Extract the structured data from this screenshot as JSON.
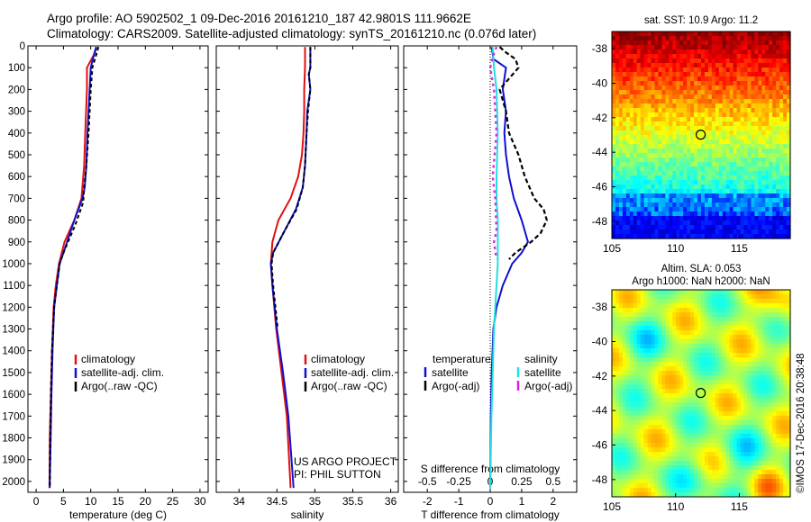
{
  "header": {
    "line1": "Argo profile: AO 5902502_1 09-Dec-2016 20161210_187 42.9801S 111.9662E",
    "line2": "Climatology: CARS2009. Satellite-adjusted climatology: synTS_20161210.nc (0.076d later)"
  },
  "colors": {
    "climatology": "#e01010",
    "satellite": "#1010d0",
    "argo": "#000000",
    "sal_satellite": "#20e0e0",
    "sal_argo": "#e020e0"
  },
  "chart_data": [
    {
      "type": "line",
      "id": "temperature",
      "xlabel": "temperature (deg C)",
      "ylabel": "",
      "xlim": [
        -1.5,
        31.5
      ],
      "ylim": [
        2050,
        0
      ],
      "x_ticks": [
        0,
        5,
        10,
        15,
        20,
        25,
        30
      ],
      "y_ticks": [
        0,
        100,
        200,
        300,
        400,
        500,
        600,
        700,
        800,
        900,
        1000,
        1100,
        1200,
        1300,
        1400,
        1500,
        1600,
        1700,
        1800,
        1900,
        2000
      ],
      "legend": {
        "placement": "lower-right",
        "entries": [
          "climatology",
          "satellite-adj. clim.",
          "Argo(..raw -QC)"
        ]
      },
      "series": [
        {
          "name": "climatology",
          "x": [
            11.0,
            10.8,
            9.3,
            9.3,
            9.0,
            8.8,
            8.3,
            7.0,
            5.2,
            4.2,
            3.6,
            3.2,
            2.9,
            2.7,
            2.5,
            2.45
          ],
          "y": [
            5,
            30,
            100,
            200,
            400,
            550,
            700,
            800,
            900,
            1000,
            1100,
            1200,
            1400,
            1600,
            1800,
            2030
          ]
        },
        {
          "name": "satellite-adj. clim.",
          "x": [
            11.0,
            10.7,
            10.0,
            9.8,
            9.4,
            9.2,
            8.9,
            8.5,
            7.0,
            5.0,
            4.3,
            3.8,
            3.3,
            3.0,
            2.8,
            2.5
          ],
          "y": [
            5,
            30,
            100,
            200,
            400,
            550,
            650,
            700,
            800,
            950,
            1000,
            1100,
            1200,
            1400,
            1600,
            2030
          ]
        },
        {
          "name": "Argo(..raw -QC)",
          "x": [
            11.4,
            11.0,
            10.3,
            10.0,
            9.6,
            9.2,
            8.8,
            8.6,
            7.2,
            5.0,
            4.3,
            3.8,
            3.3,
            2.9,
            2.7,
            2.5
          ],
          "y": [
            5,
            40,
            100,
            200,
            400,
            550,
            650,
            720,
            820,
            950,
            1000,
            1100,
            1200,
            1400,
            1600,
            2030
          ]
        }
      ]
    },
    {
      "type": "line",
      "id": "salinity",
      "xlabel": "salinity",
      "ylabel": "",
      "xlim": [
        33.7,
        36.1
      ],
      "ylim": [
        2050,
        0
      ],
      "x_ticks": [
        34,
        34.5,
        35,
        35.5,
        36
      ],
      "legend": {
        "placement": "lower-right",
        "entries": [
          "climatology",
          "satellite-adj. clim.",
          "Argo(..raw -QC)"
        ]
      },
      "annotation": [
        "US ARGO PROJECT",
        "PI: PHIL SUTTON"
      ],
      "series": [
        {
          "name": "climatology",
          "x": [
            34.87,
            34.87,
            34.86,
            34.86,
            34.85,
            34.83,
            34.78,
            34.68,
            34.52,
            34.44,
            34.42,
            34.44,
            34.49,
            34.56,
            34.63,
            34.68
          ],
          "y": [
            5,
            100,
            200,
            300,
            400,
            500,
            600,
            700,
            800,
            900,
            1000,
            1100,
            1300,
            1500,
            1700,
            2030
          ]
        },
        {
          "name": "satellite-adj. clim.",
          "x": [
            34.94,
            34.94,
            34.92,
            34.94,
            34.9,
            34.89,
            34.87,
            34.84,
            34.75,
            34.6,
            34.45,
            34.42,
            34.44,
            34.5,
            34.58,
            34.65,
            34.72
          ],
          "y": [
            5,
            100,
            130,
            200,
            300,
            400,
            550,
            650,
            750,
            850,
            950,
            1000,
            1100,
            1300,
            1500,
            1700,
            2030
          ]
        },
        {
          "name": "Argo(..raw -QC)",
          "x": [
            34.94,
            34.94,
            34.92,
            34.94,
            34.91,
            34.89,
            34.87,
            34.84,
            34.76,
            34.6,
            34.45,
            34.43,
            34.45,
            34.51
          ],
          "y": [
            5,
            100,
            130,
            200,
            300,
            400,
            550,
            650,
            750,
            850,
            950,
            1000,
            1100,
            1300
          ]
        }
      ]
    },
    {
      "type": "line",
      "id": "difference",
      "xlabel": "T difference from climatology",
      "x2label": "S difference from climatology",
      "xlim": [
        -2.75,
        2.75
      ],
      "ylim": [
        2050,
        0
      ],
      "x_ticks": [
        -2,
        -1,
        0,
        1,
        2
      ],
      "x_tick_labels": [
        "-2",
        "-1",
        "0",
        "1",
        "2"
      ],
      "x2_ticks": [
        -0.5,
        -0.25,
        0,
        0.25,
        0.5
      ],
      "x2_tick_labels": [
        "-0.5",
        "-0.25",
        "0",
        "0.25",
        "0.5"
      ],
      "legend": {
        "placement": "lower-center",
        "entries": [
          "temperature",
          "satellite",
          "Argo(-adj)",
          "salinity",
          "satellite",
          "Argo(-adj)"
        ]
      },
      "series": [
        {
          "name": "satellite",
          "x": [
            0.05,
            0.1,
            0.5,
            0.4,
            0.5,
            0.45,
            0.5,
            0.6,
            0.75,
            1.0,
            1.2,
            1.0,
            0.7,
            0.4,
            0.2,
            0.1,
            0.05,
            0.02,
            0.0
          ],
          "y": [
            5,
            60,
            100,
            200,
            300,
            400,
            500,
            600,
            700,
            800,
            900,
            950,
            1000,
            1100,
            1200,
            1300,
            1500,
            1700,
            2030
          ]
        },
        {
          "name": "Argo(-adj)",
          "x": [
            0.3,
            0.5,
            0.8,
            0.9,
            0.6,
            0.3,
            0.5,
            0.6,
            0.9,
            1.1,
            1.4,
            1.7,
            1.8,
            1.6,
            1.3,
            0.8,
            0.6
          ],
          "y": [
            5,
            30,
            60,
            100,
            150,
            200,
            300,
            400,
            500,
            600,
            700,
            750,
            800,
            860,
            900,
            950,
            980
          ]
        },
        {
          "name": "satellite",
          "x": [
            0.02,
            0.03,
            0.05,
            0.06,
            0.05,
            0.05,
            0.06,
            0.06,
            0.06,
            0.05,
            0.04,
            0.03,
            0.02,
            0.01,
            0.0
          ],
          "y": [
            5,
            100,
            200,
            400,
            600,
            700,
            800,
            900,
            1000,
            1100,
            1200,
            1300,
            1500,
            1700,
            2030
          ]
        },
        {
          "name": "Argo(-adj)",
          "x": [
            0.05,
            0.02,
            0.0,
            0.03,
            0.05,
            0.02,
            0.04,
            0.05,
            0.03,
            0.05
          ],
          "y": [
            5,
            50,
            100,
            200,
            400,
            600,
            700,
            850,
            900,
            980
          ]
        }
      ]
    },
    {
      "type": "heatmap",
      "id": "sst_map",
      "title": "sat. SST: 10.9 Argo: 11.2",
      "xlim": [
        105,
        119
      ],
      "ylim": [
        -49,
        -37
      ],
      "x_ticks": [
        105,
        110,
        115
      ],
      "y_ticks": [
        -38,
        -40,
        -42,
        -44,
        -46,
        -48
      ],
      "marker": {
        "lon": 111.97,
        "lat": -42.98
      }
    },
    {
      "type": "heatmap",
      "id": "sla_map",
      "title": "Altim. SLA: 0.053",
      "subtitle": "Argo h1000: NaN h2000: NaN",
      "xlim": [
        105,
        119
      ],
      "ylim": [
        -49,
        -37
      ],
      "x_ticks": [
        105,
        110,
        115
      ],
      "y_ticks": [
        -38,
        -40,
        -42,
        -44,
        -46,
        -48
      ],
      "marker": {
        "lon": 111.97,
        "lat": -42.98
      },
      "side_label": "©IMOS 17-Dec-2016 20:38:48"
    }
  ]
}
